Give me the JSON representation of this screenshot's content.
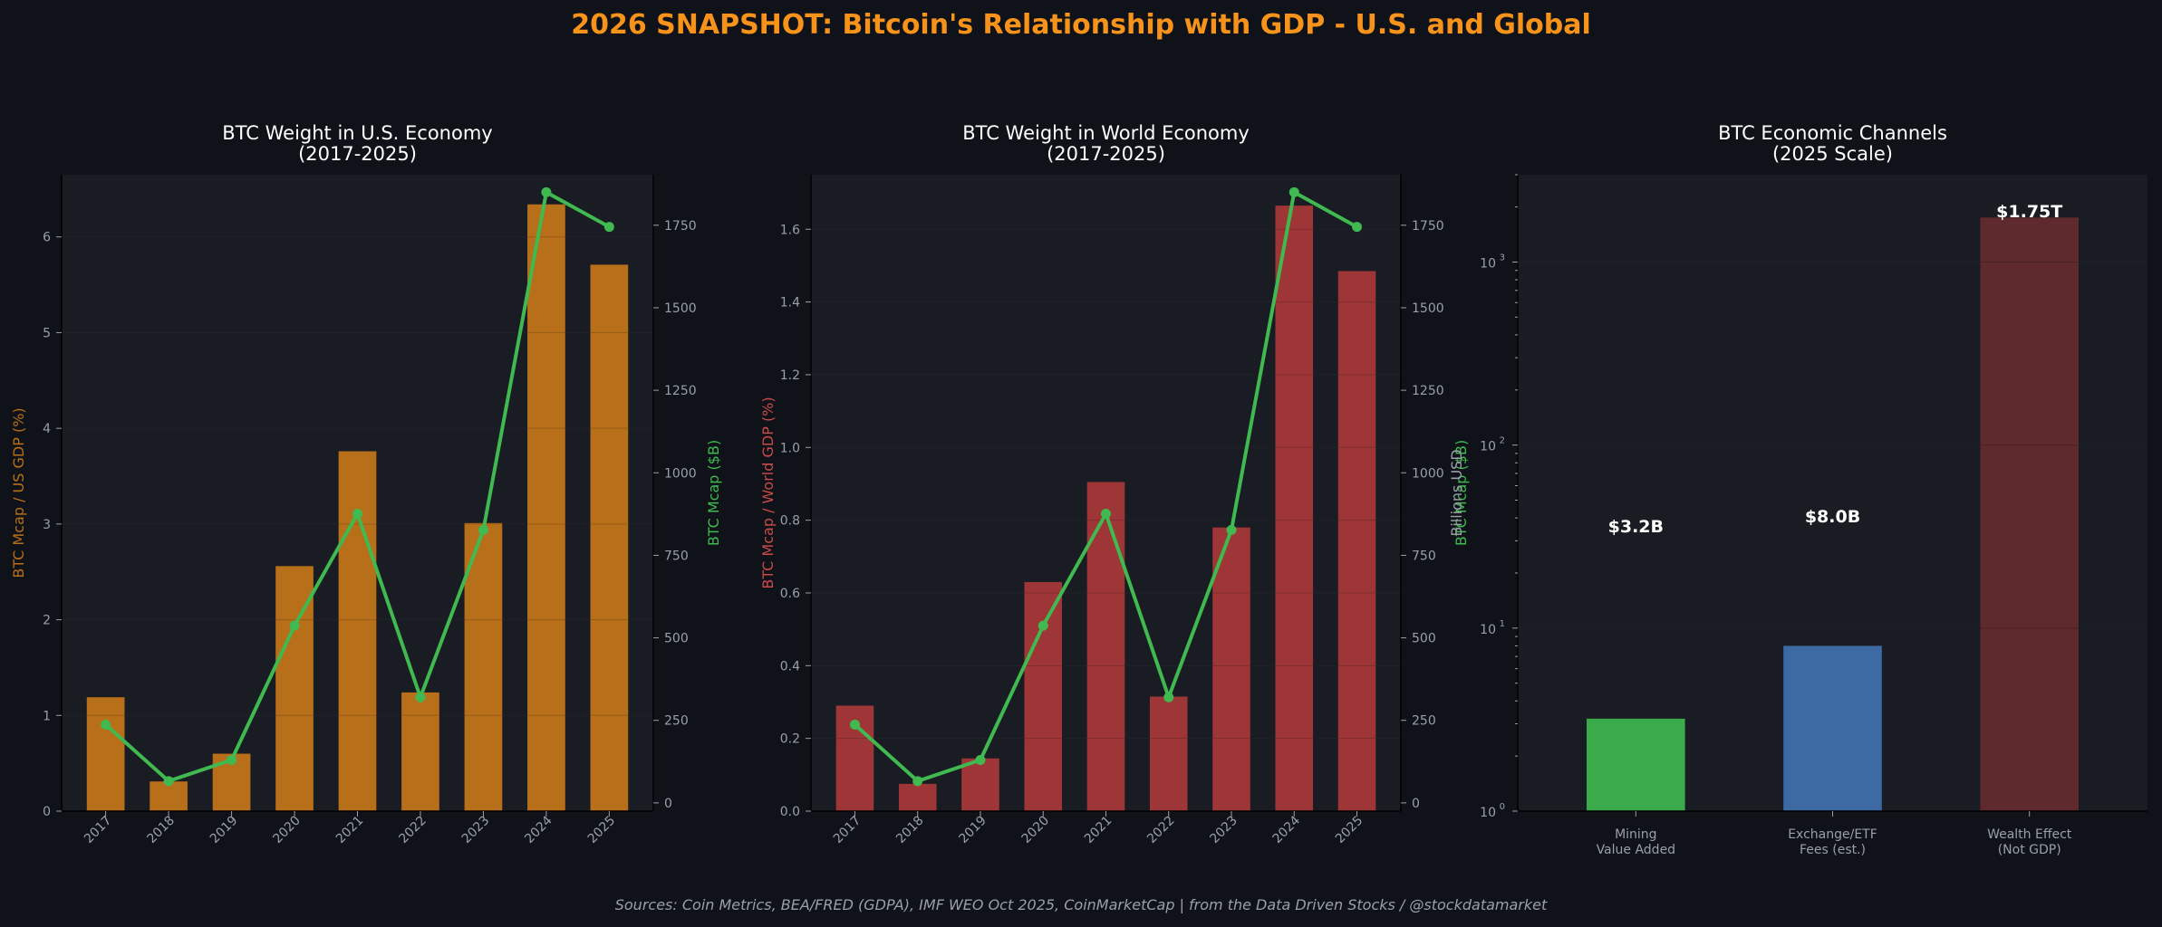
{
  "suptitle": "2026 SNAPSHOT: Bitcoin's Relationship with GDP - U.S. and Global",
  "footer": "Sources: Coin Metrics, BEA/FRED (GDPA), IMF WEO Oct 2025, CoinMarketCap | from the Data Driven Stocks / @stockdatamarket",
  "colors": {
    "background": "#0f1218",
    "panel": "#191c22",
    "title": "#f7931a",
    "text": "#ffffff",
    "tick": "#9aa0a8",
    "us_bar": "#b86f1a",
    "world_bar": "#9e3637",
    "line": "#3fb950",
    "mining": "#3aaa4a",
    "exchange": "#3d6aa3",
    "wealth": "#5e2a2d"
  },
  "chart_data": [
    {
      "type": "bar+line",
      "title": "BTC Weight in U.S. Economy\n(2017-2025)",
      "categories": [
        "2017",
        "2018",
        "2019",
        "2020",
        "2021",
        "2022",
        "2023",
        "2024",
        "2025"
      ],
      "ylabel": "BTC Mcap / US GDP (%)",
      "y2label": "BTC Mcap ($B)",
      "ylim": [
        0,
        6.65
      ],
      "y2lim": [
        -25,
        1903
      ],
      "yticks": [
        0,
        1,
        2,
        3,
        4,
        5,
        6
      ],
      "y2ticks": [
        0,
        250,
        500,
        750,
        1000,
        1250,
        1500,
        1750
      ],
      "series": [
        {
          "name": "BTC Mcap / US GDP (%)",
          "kind": "bar",
          "values": [
            1.19,
            0.31,
            0.6,
            2.56,
            3.76,
            1.24,
            3.01,
            6.34,
            5.71
          ]
        },
        {
          "name": "BTC Mcap ($B)",
          "kind": "line",
          "axis": "right",
          "values": [
            237,
            66,
            130,
            537,
            876,
            320,
            827,
            1850,
            1745
          ]
        }
      ]
    },
    {
      "type": "bar+line",
      "title": "BTC Weight in World Economy\n(2017-2025)",
      "categories": [
        "2017",
        "2018",
        "2019",
        "2020",
        "2021",
        "2022",
        "2023",
        "2024",
        "2025"
      ],
      "ylabel": "BTC Mcap / World GDP (%)",
      "y2label": "BTC Mcap ($B)",
      "ylim": [
        0,
        1.75
      ],
      "y2lim": [
        -25,
        1903
      ],
      "yticks": [
        0,
        0.2,
        0.4,
        0.6,
        0.8,
        1.0,
        1.2,
        1.4,
        1.6
      ],
      "ytick_labels": [
        "0.0",
        "0.2",
        "0.4",
        "0.6",
        "0.8",
        "1.0",
        "1.2",
        "1.4",
        "1.6"
      ],
      "y2ticks": [
        0,
        250,
        500,
        750,
        1000,
        1250,
        1500,
        1750
      ],
      "series": [
        {
          "name": "BTC Mcap / World GDP (%)",
          "kind": "bar",
          "values": [
            0.29,
            0.075,
            0.145,
            0.63,
            0.905,
            0.315,
            0.78,
            1.665,
            1.485
          ]
        },
        {
          "name": "BTC Mcap ($B)",
          "kind": "line",
          "axis": "right",
          "values": [
            237,
            66,
            130,
            537,
            876,
            320,
            827,
            1850,
            1745
          ]
        }
      ]
    },
    {
      "type": "bar",
      "scale": "log",
      "title": "BTC Economic Channels\n(2025 Scale)",
      "ylabel": "Billions USD",
      "ylim": [
        1,
        3000
      ],
      "yticks": [
        1,
        10,
        100,
        1000
      ],
      "ytick_labels": [
        [
          "10",
          "0"
        ],
        [
          "10",
          "1"
        ],
        [
          "10",
          "2"
        ],
        [
          "10",
          "3"
        ]
      ],
      "categories": [
        "Mining\nValue Added",
        "Exchange/ETF\nFees (est.)",
        "Wealth Effect\n(Not GDP)"
      ],
      "values": [
        3.2,
        8.0,
        1750
      ],
      "labels": [
        "$3.2B",
        "$8.0B",
        "$1.75T"
      ]
    }
  ]
}
